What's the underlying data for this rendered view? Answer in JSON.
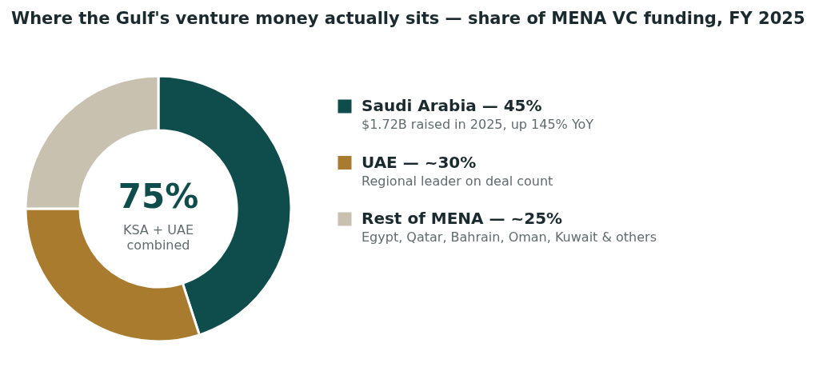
{
  "chart_data": {
    "type": "donut",
    "title": "Where the Gulf's venture money actually sits — share of MENA VC funding, FY 2025",
    "categories": [
      "Saudi Arabia — 45%",
      "UAE — ~30%",
      "Rest of MENA — ~25%"
    ],
    "values": [
      45,
      30,
      25
    ],
    "colors": [
      "#0f4d4c",
      "#a87b2e",
      "#c9c1b0"
    ],
    "legend": "right",
    "annotations": [
      "75%",
      "KSA + UAE\ncombined",
      "$1.72B raised in 2025, up 145% YoY",
      "Regional leader on deal count",
      "Egypt, Qatar, Bahrain, Oman, Kuwait & others"
    ]
  }
}
